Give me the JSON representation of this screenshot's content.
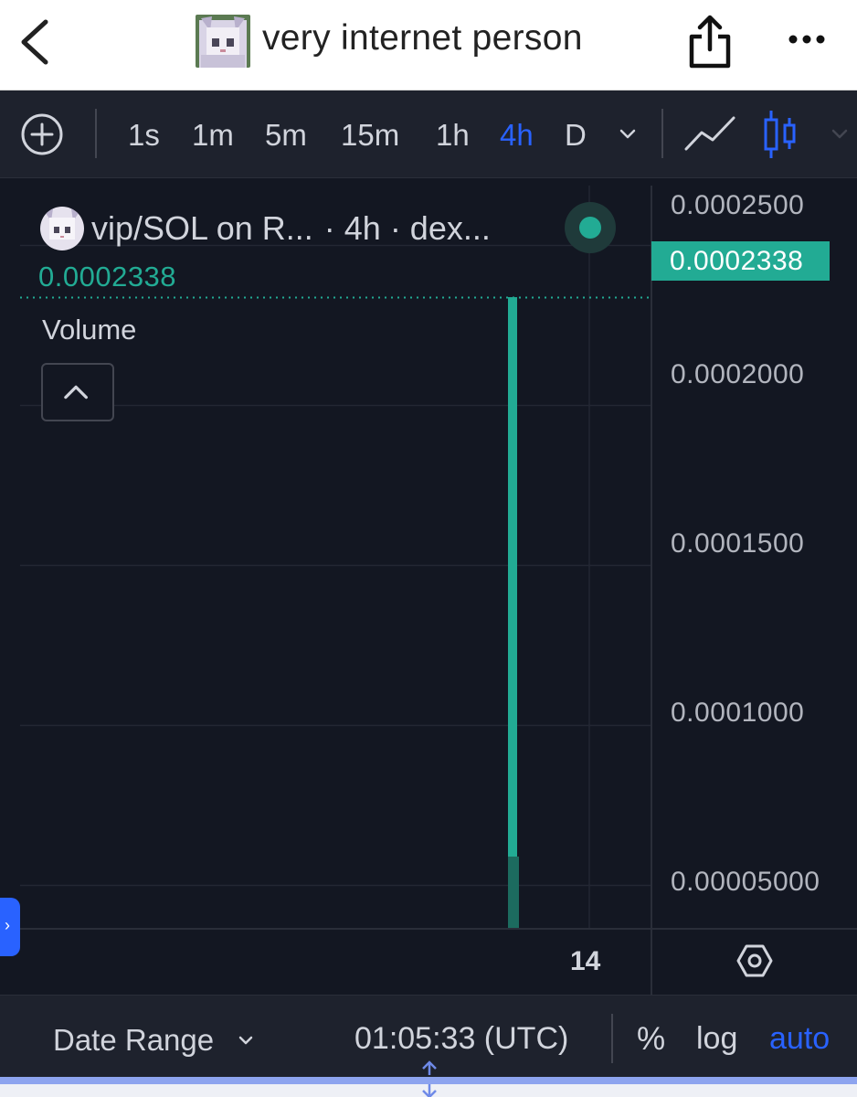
{
  "header": {
    "title": "very internet person",
    "back_icon": "chevron-left-icon",
    "share_icon": "share-icon",
    "more_icon": "more-icon"
  },
  "toolbar": {
    "add_icon": "plus-circle-icon",
    "intervals": [
      "1s",
      "1m",
      "5m",
      "15m",
      "1h",
      "4h",
      "D"
    ],
    "active_interval": "4h",
    "chart_types": [
      "line-chart-icon",
      "candlestick-icon"
    ],
    "active_chart_type": "candlestick-icon"
  },
  "chart": {
    "symbol": "vip/SOL on R...",
    "symbol_suffix": "· 4h · dex...",
    "last_value": "0.0002338",
    "volume_label": "Volume",
    "price_tag": "0.0002338",
    "time_tick": "14"
  },
  "chart_data": {
    "type": "bar",
    "categories": [
      "14"
    ],
    "series": [
      {
        "values": [
          0.0002338
        ]
      }
    ],
    "volume": [
      3.8e-06
    ],
    "ylabel": "",
    "xlabel": "",
    "yticks": [
      "0.0002500",
      "0.0002000",
      "0.0001500",
      "0.0001000",
      "0.00005000"
    ],
    "ytick_values": [
      0.00025,
      0.0002,
      0.00015,
      0.0001,
      5e-05
    ],
    "ylim": [
      3.65e-05,
      0.0002687
    ],
    "last_price": 0.0002338,
    "grid": true
  },
  "footer": {
    "date_range": "Date Range",
    "clock": "01:05:33 (UTC)",
    "percent": "%",
    "log": "log",
    "auto": "auto"
  },
  "colors": {
    "background": "#131722",
    "toolbar": "#1e222d",
    "accent": "#2962ff",
    "up": "#22ab94",
    "text": "#d1d4dc"
  }
}
